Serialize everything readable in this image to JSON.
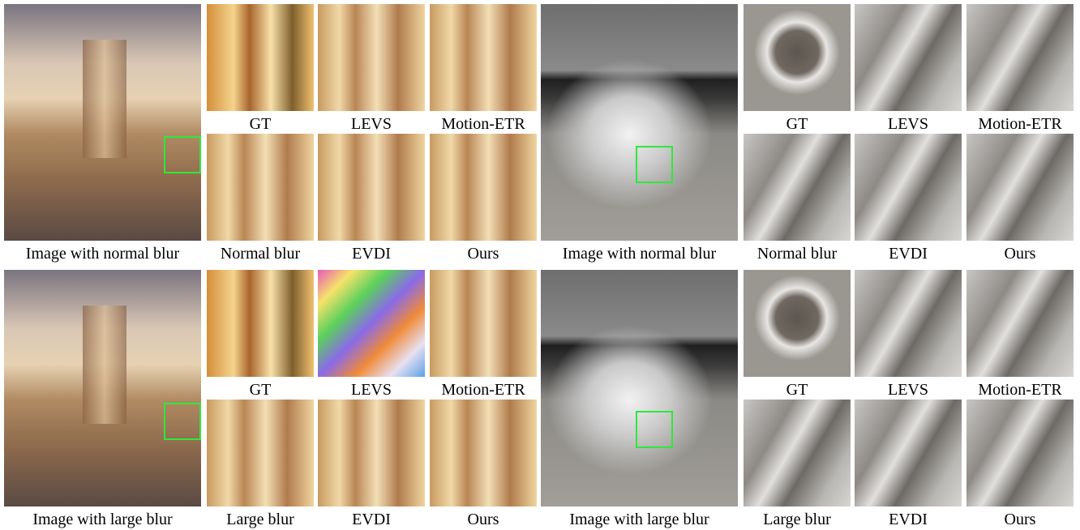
{
  "rows": [
    {
      "scenes": [
        {
          "main_caption": "Image with normal blur",
          "crops": [
            "GT",
            "LEVS",
            "Motion-ETR",
            "Normal blur",
            "EVDI",
            "Ours"
          ]
        },
        {
          "main_caption": "Image with normal blur",
          "crops": [
            "GT",
            "LEVS",
            "Motion-ETR",
            "Normal blur",
            "EVDI",
            "Ours"
          ]
        }
      ]
    },
    {
      "scenes": [
        {
          "main_caption": "Image with large blur",
          "crops": [
            "GT",
            "LEVS",
            "Motion-ETR",
            "Large blur",
            "EVDI",
            "Ours"
          ]
        },
        {
          "main_caption": "Image with large blur",
          "crops": [
            "GT",
            "LEVS",
            "Motion-ETR",
            "Large blur",
            "EVDI",
            "Ours"
          ]
        }
      ]
    }
  ]
}
